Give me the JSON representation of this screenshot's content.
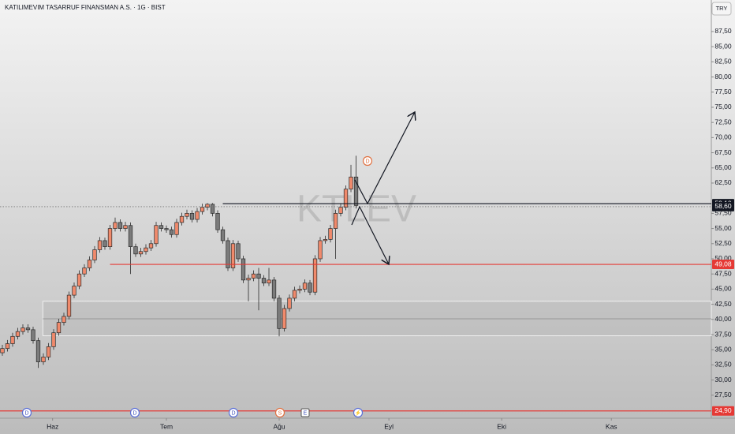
{
  "chart_data": {
    "type": "candlestick",
    "title": "KATILIMEVIM TASARRUF FINANSMAN A.S. · 1G · BIST",
    "currency": "TRY",
    "watermark": "KTLEV",
    "up_color": "#f08a6c",
    "down_color": "#7b7b7b",
    "xlim": [
      -0.46,
      138.3
    ],
    "xticks": [
      {
        "value": 9.8,
        "label": "Haz"
      },
      {
        "value": 32.0,
        "label": "Tem"
      },
      {
        "value": 54.0,
        "label": "Ağu"
      },
      {
        "value": 75.4,
        "label": "Eyl"
      },
      {
        "value": 97.4,
        "label": "Eki"
      },
      {
        "value": 118.8,
        "label": "Kas"
      }
    ],
    "ylim": [
      23.7,
      92.7
    ],
    "yticks": [
      {
        "value": 27.5,
        "label": "27,50"
      },
      {
        "value": 30,
        "label": "30,00"
      },
      {
        "value": 32.5,
        "label": "32,50"
      },
      {
        "value": 35,
        "label": "35,00"
      },
      {
        "value": 37.5,
        "label": "37,50"
      },
      {
        "value": 40,
        "label": "40,00"
      },
      {
        "value": 42.5,
        "label": "42,50"
      },
      {
        "value": 45,
        "label": "45,00"
      },
      {
        "value": 47.5,
        "label": "47,50"
      },
      {
        "value": 50,
        "label": "50,00"
      },
      {
        "value": 52.5,
        "label": "52,50"
      },
      {
        "value": 55,
        "label": "55,00"
      },
      {
        "value": 57.5,
        "label": "57,50"
      },
      {
        "value": 62.5,
        "label": "62,50"
      },
      {
        "value": 65,
        "label": "65,00"
      },
      {
        "value": 67.5,
        "label": "67,50"
      },
      {
        "value": 70,
        "label": "70,00"
      },
      {
        "value": 72.5,
        "label": "72,50"
      },
      {
        "value": 75,
        "label": "75,00"
      },
      {
        "value": 77.5,
        "label": "77,50"
      },
      {
        "value": 80,
        "label": "80,00"
      },
      {
        "value": 82.5,
        "label": "82,50"
      },
      {
        "value": 85,
        "label": "85,00"
      },
      {
        "value": 87.5,
        "label": "87,50"
      }
    ],
    "open": [
      34.5,
      35.2,
      36.0,
      37.2,
      38.0,
      38.6,
      38.3,
      36.5,
      33.0,
      33.8,
      35.5,
      37.8,
      39.5,
      40.5,
      44.0,
      45.5,
      47.5,
      48.5,
      49.8,
      51.5,
      53.0,
      52.0,
      55.0,
      56.0,
      55.0,
      55.5,
      52.0,
      50.8,
      51.2,
      51.8,
      52.5,
      55.5,
      55.0,
      54.8,
      54.0,
      56.0,
      57.0,
      57.5,
      56.5,
      57.8,
      58.5,
      59.0,
      57.5,
      54.8,
      53.0,
      48.5,
      52.5,
      50.0,
      46.5,
      46.8,
      47.5,
      46.8,
      46.0,
      46.5,
      43.5,
      38.5,
      41.8,
      43.5,
      44.8,
      45.0,
      46.0,
      44.5,
      50.0,
      53.0,
      53.2,
      55.0,
      57.5,
      58.5,
      61.5,
      63.5
    ],
    "high": [
      35.8,
      36.6,
      37.8,
      38.6,
      39.2,
      39.2,
      38.8,
      37.0,
      34.4,
      36.1,
      38.4,
      40.1,
      41.1,
      44.6,
      46.1,
      48.1,
      49.1,
      50.4,
      52.1,
      53.6,
      53.5,
      55.6,
      56.8,
      56.5,
      56.1,
      56.0,
      52.5,
      51.8,
      52.4,
      53.1,
      56.1,
      56.0,
      55.5,
      55.3,
      56.6,
      57.6,
      58.1,
      58.0,
      58.4,
      59.1,
      59.2,
      59.2,
      58.0,
      55.3,
      53.5,
      53.1,
      53.0,
      50.5,
      47.4,
      48.1,
      48.5,
      47.3,
      48.5,
      47.0,
      44.0,
      42.4,
      44.1,
      45.4,
      45.6,
      46.6,
      46.5,
      50.6,
      53.6,
      53.8,
      55.6,
      58.1,
      59.1,
      62.1,
      65.5,
      67.0
    ],
    "low": [
      34.0,
      34.7,
      35.5,
      36.7,
      37.5,
      37.8,
      36.0,
      32.0,
      32.5,
      33.3,
      35.0,
      37.3,
      39.0,
      40.0,
      43.5,
      45.0,
      47.0,
      48.0,
      49.3,
      51.0,
      51.5,
      51.5,
      54.5,
      54.5,
      54.5,
      47.5,
      50.3,
      50.3,
      50.7,
      51.3,
      52.0,
      54.5,
      54.3,
      53.5,
      53.5,
      55.5,
      56.5,
      56.0,
      56.0,
      57.3,
      58.0,
      57.0,
      54.3,
      52.5,
      48.0,
      48.0,
      49.5,
      46.0,
      43.0,
      46.3,
      41.5,
      45.5,
      45.5,
      43.0,
      37.2,
      38.0,
      41.3,
      43.0,
      44.3,
      44.5,
      44.0,
      44.0,
      49.5,
      52.5,
      52.7,
      50.0,
      57.0,
      58.0,
      61.0,
      58.3
    ],
    "close": [
      35.2,
      36.0,
      37.2,
      38.0,
      38.6,
      38.3,
      36.5,
      33.0,
      33.8,
      35.5,
      37.8,
      39.5,
      40.5,
      44.0,
      45.5,
      47.5,
      48.5,
      49.8,
      51.5,
      53.0,
      52.0,
      55.0,
      56.0,
      55.0,
      55.5,
      52.0,
      50.8,
      51.2,
      51.8,
      52.5,
      55.5,
      55.0,
      54.8,
      54.0,
      56.0,
      57.0,
      57.5,
      56.5,
      57.8,
      58.5,
      59.0,
      57.5,
      54.8,
      53.0,
      48.5,
      52.5,
      50.0,
      46.5,
      46.8,
      47.5,
      46.8,
      46.0,
      46.5,
      43.5,
      38.5,
      41.8,
      43.5,
      44.8,
      45.0,
      46.0,
      44.5,
      50.0,
      53.0,
      53.2,
      55.0,
      57.5,
      58.5,
      61.5,
      63.5,
      58.8
    ],
    "levels": [
      {
        "value": 59.1,
        "label": "59,10",
        "color": "#131722",
        "start": 43
      },
      {
        "value": 58.6,
        "label": "58,60",
        "color": "#131722",
        "start": -0.46,
        "dotted": true
      },
      {
        "value": 49.08,
        "label": "49,08",
        "color": "#e53935",
        "start": 21
      },
      {
        "value": 24.9,
        "label": "24,90",
        "color": "#e53935",
        "start": -0.46
      }
    ],
    "zone": {
      "low": 37.3,
      "high": 43.0,
      "mid": 40.1,
      "start": 7.9
    },
    "events": [
      "D",
      "D",
      "D",
      "S",
      "E",
      "⚡",
      "D"
    ]
  }
}
